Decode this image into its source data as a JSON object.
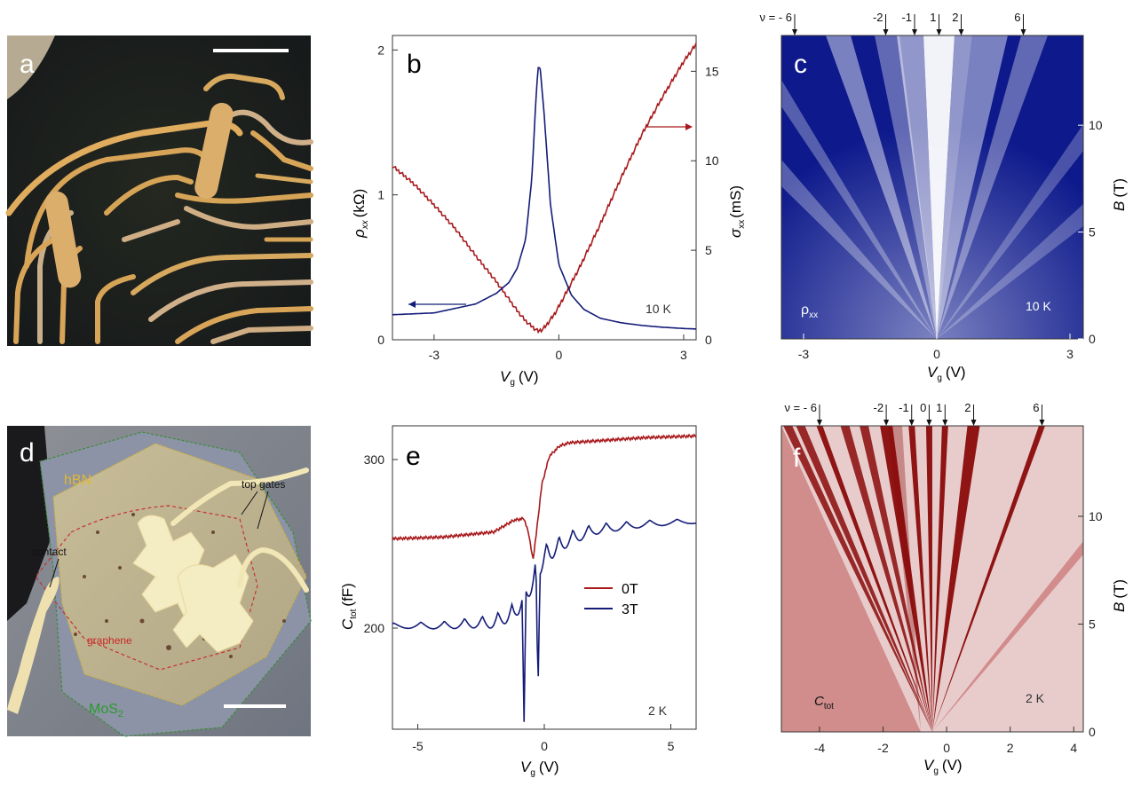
{
  "figure": {
    "panel_labels": {
      "a": "a",
      "b": "b",
      "c": "c",
      "d": "d",
      "e": "e",
      "f": "f"
    },
    "colors": {
      "red": "#a8191c",
      "navy": "#141c78",
      "c_map_dark": "#0e1a8c",
      "f_map_dark": "#8a0a0a"
    }
  },
  "chart_data": [
    {
      "panel": "b",
      "type": "line",
      "xlabel_main": "V",
      "xlabel_sub": "g",
      "xlabel_unit": "(V)",
      "ylabel_left_main": "ρ",
      "ylabel_left_sub": "xx",
      "ylabel_left_unit": "(kΩ)",
      "ylabel_right_main": "σ",
      "ylabel_right_sub": "xx",
      "ylabel_right_unit": "(mS)",
      "xlim": [
        -4,
        3.3
      ],
      "ylim_left": [
        0,
        2.1
      ],
      "ylim_right": [
        0,
        17
      ],
      "xticks": [
        "-3",
        "0",
        "3"
      ],
      "yticks_left": [
        "0",
        "1",
        "2"
      ],
      "yticks_right": [
        "0",
        "5",
        "10",
        "15"
      ],
      "temperature": "10 K",
      "series": [
        {
          "axis": "left",
          "color": "#a8191c",
          "x": [
            -4,
            -3.5,
            -3,
            -2.5,
            -2,
            -1.5,
            -1.2,
            -1.0,
            -0.8,
            -0.6,
            -0.5,
            -0.4,
            -0.3,
            -0.1,
            0,
            0.5,
            1,
            1.5,
            2,
            2.5,
            3,
            3.3
          ],
          "y": [
            1.2,
            1.08,
            0.93,
            0.77,
            0.58,
            0.4,
            0.28,
            0.2,
            0.13,
            0.08,
            0.06,
            0.07,
            0.1,
            0.18,
            0.23,
            0.5,
            0.8,
            1.12,
            1.42,
            1.68,
            1.92,
            2.04
          ]
        },
        {
          "axis": "right",
          "color": "#141c78",
          "x": [
            -4,
            -3,
            -2,
            -1.5,
            -1.2,
            -1.0,
            -0.8,
            -0.65,
            -0.55,
            -0.5,
            -0.45,
            -0.35,
            -0.2,
            0,
            0.3,
            0.6,
            1,
            1.5,
            2,
            2.5,
            3,
            3.3
          ],
          "y": [
            1.4,
            1.5,
            2.0,
            2.6,
            3.2,
            4.0,
            5.6,
            9.0,
            13.5,
            15.2,
            15.2,
            12.5,
            7.5,
            4.2,
            2.5,
            1.7,
            1.2,
            0.95,
            0.8,
            0.7,
            0.63,
            0.6
          ]
        }
      ]
    },
    {
      "panel": "c",
      "type": "heatmap",
      "xlabel_main": "V",
      "xlabel_sub": "g",
      "xlabel_unit": "(V)",
      "ylabel_main": "B",
      "ylabel_unit": "(T)",
      "xlim": [
        -3.5,
        3.3
      ],
      "ylim": [
        0,
        14.2
      ],
      "xticks": [
        "-3",
        "0",
        "3"
      ],
      "yticks": [
        "0",
        "5",
        "10"
      ],
      "inset_label_main": "ρ",
      "inset_label_sub": "xx",
      "temperature": "10 K",
      "nu_labels": [
        {
          "text": "ν = - 6",
          "vg": -3.2
        },
        {
          "text": "-2",
          "vg": -1.15
        },
        {
          "text": "-1",
          "vg": -0.5
        },
        {
          "text": "1",
          "vg": 0.05
        },
        {
          "text": "2",
          "vg": 0.55
        },
        {
          "text": "6",
          "vg": 1.95
        }
      ]
    },
    {
      "panel": "e",
      "type": "line",
      "xlabel_main": "V",
      "xlabel_sub": "g",
      "xlabel_unit": "(V)",
      "ylabel_main": "C",
      "ylabel_sub": "tot",
      "ylabel_unit": "(fF)",
      "xlim": [
        -6,
        6
      ],
      "ylim": [
        140,
        320
      ],
      "xticks": [
        "-5",
        "0",
        "5"
      ],
      "yticks": [
        "200",
        "300"
      ],
      "temperature": "2 K",
      "series": [
        {
          "name": "0T",
          "color": "#a8191c",
          "x": [
            -6,
            -4,
            -2,
            -1.2,
            -0.8,
            -0.6,
            -0.45,
            -0.3,
            -0.1,
            0.2,
            0.6,
            1,
            2,
            4,
            6
          ],
          "y": [
            253,
            254,
            257,
            264,
            265,
            255,
            240,
            258,
            285,
            302,
            308,
            310,
            311,
            313,
            314
          ]
        },
        {
          "name": "3T",
          "color": "#141c78",
          "oscillating": true,
          "x": [
            -6,
            -4,
            -2,
            -1.2,
            -0.8,
            0,
            1,
            2,
            4,
            6
          ],
          "y": [
            203,
            204,
            208,
            215,
            225,
            250,
            258,
            262,
            264,
            265
          ]
        }
      ]
    },
    {
      "panel": "f",
      "type": "heatmap",
      "xlabel_main": "V",
      "xlabel_sub": "g",
      "xlabel_unit": "(V)",
      "ylabel_main": "B",
      "ylabel_unit": "(T)",
      "xlim": [
        -5.2,
        4.3
      ],
      "ylim": [
        0,
        14.2
      ],
      "xticks": [
        "-4",
        "-2",
        "0",
        "2",
        "4"
      ],
      "yticks": [
        "0",
        "5",
        "10"
      ],
      "inset_label_main": "C",
      "inset_label_sub": "tot",
      "temperature": "2 K",
      "nu_labels": [
        {
          "text": "ν = - 6",
          "vg": -4.0
        },
        {
          "text": "-2",
          "vg": -1.9
        },
        {
          "text": "-1",
          "vg": -1.1
        },
        {
          "text": "0",
          "vg": -0.55
        },
        {
          "text": "1",
          "vg": -0.05
        },
        {
          "text": "2",
          "vg": 0.85
        },
        {
          "text": "6",
          "vg": 3.0
        }
      ]
    }
  ],
  "photo_d": {
    "hbn": "hBN",
    "top_gates": "top gates",
    "contact": "contact",
    "graphene": "graphene",
    "mos2_main": "MoS",
    "mos2_sub": "2"
  }
}
